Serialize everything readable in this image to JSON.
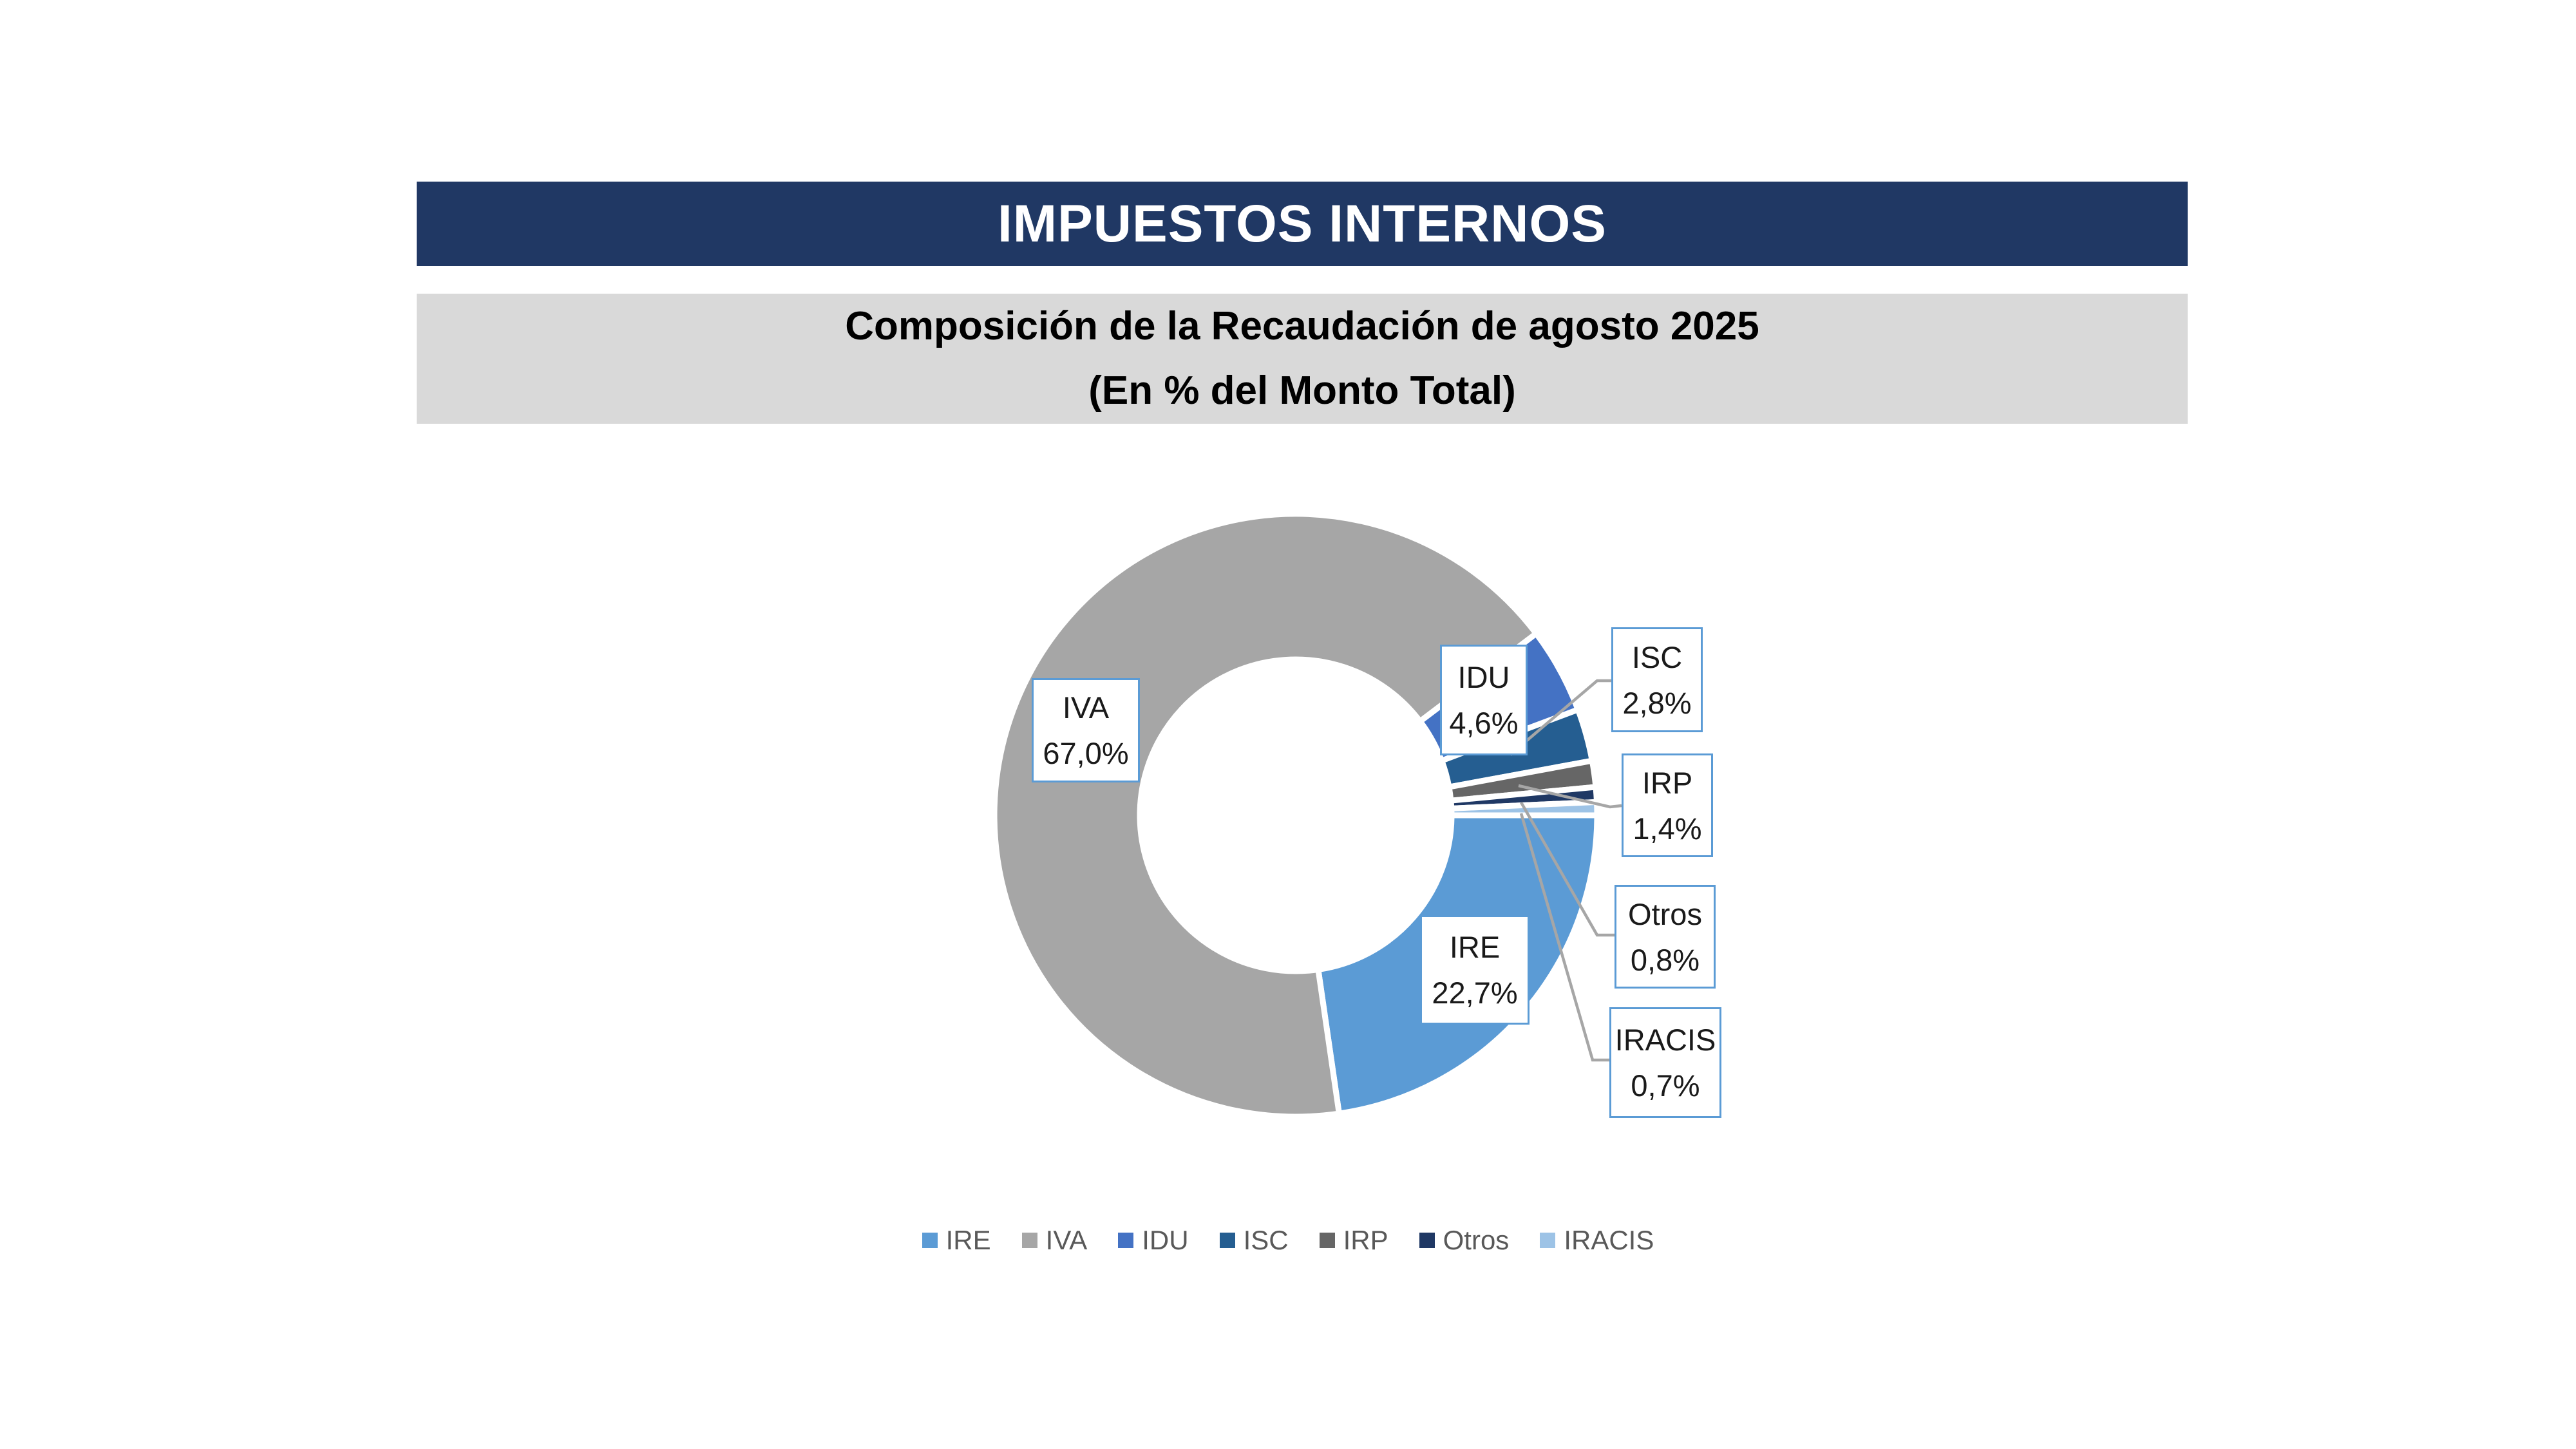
{
  "header": {
    "title": "IMPUESTOS INTERNOS"
  },
  "subtitle": {
    "line1": "Composición de la Recaudación de agosto 2025",
    "line2": "(En % del Monto Total)"
  },
  "chart_data": {
    "type": "pie",
    "subtype": "donut",
    "title": "Composición de la Recaudación de agosto 2025 (En % del Monto Total)",
    "start_angle_deg": 90,
    "clockwise": true,
    "inner_radius_ratio": 0.515,
    "slices": [
      {
        "label": "IRE",
        "value": 22.7,
        "display": "22,7%",
        "color": "#5B9BD5"
      },
      {
        "label": "IVA",
        "value": 67.0,
        "display": "67,0%",
        "color": "#A6A6A6"
      },
      {
        "label": "IDU",
        "value": 4.6,
        "display": "4,6%",
        "color": "#4472C4"
      },
      {
        "label": "ISC",
        "value": 2.8,
        "display": "2,8%",
        "color": "#255E91"
      },
      {
        "label": "IRP",
        "value": 1.4,
        "display": "1,4%",
        "color": "#666666"
      },
      {
        "label": "Otros",
        "value": 0.8,
        "display": "0,8%",
        "color": "#1F3864"
      },
      {
        "label": "IRACIS",
        "value": 0.7,
        "display": "0,7%",
        "color": "#9DC3E6"
      }
    ],
    "legend": {
      "position": "bottom",
      "items": [
        "IRE",
        "IVA",
        "IDU",
        "ISC",
        "IRP",
        "Otros",
        "IRACIS"
      ]
    }
  },
  "colors": {
    "title_bar_bg": "#203864",
    "title_text": "#FFFFFF",
    "subtitle_bg": "#D9D9D9",
    "subtitle_text": "#000000",
    "callout_border": "#5B9BD5",
    "leader_line": "#A6A6A6",
    "legend_text": "#595959",
    "slice_separator": "#FFFFFF"
  }
}
